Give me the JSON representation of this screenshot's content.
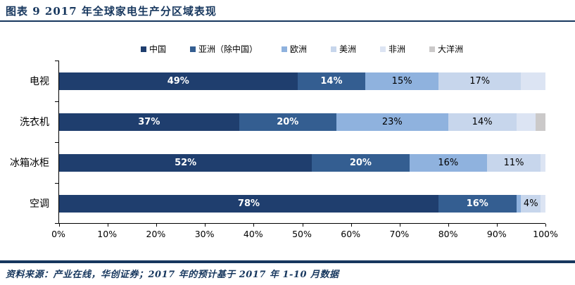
{
  "title": "图表 9  2017 年全球家电生产分区域表现",
  "footer": {
    "source": "资料来源：产业在线，华创证券；2017 年的预计基于 2017 年 1-10 月数据"
  },
  "colors": {
    "accent_navy": "#17375E",
    "axis": "#000000",
    "background": "#FFFFFF"
  },
  "chart_data": {
    "type": "bar",
    "orientation": "horizontal",
    "stacked": true,
    "title": "2017 年全球家电生产分区域表现",
    "unit": "%",
    "xlim": [
      0,
      100
    ],
    "x_ticks": [
      "0%",
      "10%",
      "20%",
      "30%",
      "40%",
      "50%",
      "60%",
      "70%",
      "80%",
      "90%",
      "100%"
    ],
    "grid": false,
    "legend_position": "top",
    "categories": [
      "电视",
      "洗衣机",
      "冰箱冰柜",
      "空调"
    ],
    "series": [
      {
        "name": "中国",
        "color": "#1F3E6E",
        "label_color": "#FFFFFF",
        "values": [
          49,
          37,
          52,
          78
        ],
        "labels": [
          "49%",
          "37%",
          "52%",
          "78%"
        ]
      },
      {
        "name": "亚洲（除中国）",
        "color": "#345E91",
        "label_color": "#FFFFFF",
        "values": [
          14,
          20,
          20,
          16
        ],
        "labels": [
          "14%",
          "20%",
          "20%",
          "16%"
        ]
      },
      {
        "name": "欧洲",
        "color": "#8FB2DE",
        "label_color": "#000000",
        "values": [
          15,
          23,
          16,
          1
        ],
        "labels": [
          "15%",
          "23%",
          "16%",
          ""
        ]
      },
      {
        "name": "美洲",
        "color": "#C7D6EC",
        "label_color": "#000000",
        "values": [
          17,
          14,
          11,
          4
        ],
        "labels": [
          "17%",
          "14%",
          "11%",
          "4%"
        ]
      },
      {
        "name": "非洲",
        "color": "#DCE4F3",
        "label_color": "#000000",
        "values": [
          5,
          4,
          1,
          1
        ],
        "labels": [
          "",
          "",
          "",
          ""
        ]
      },
      {
        "name": "大洋洲",
        "color": "#CBC9C9",
        "label_color": "#000000",
        "values": [
          0,
          2,
          0,
          0
        ],
        "labels": [
          "",
          "",
          "",
          ""
        ]
      }
    ]
  }
}
